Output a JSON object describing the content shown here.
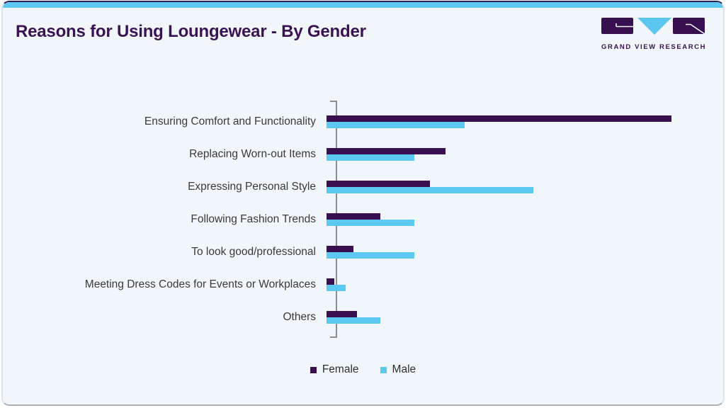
{
  "header": {
    "title": "Reasons for Using Loungewear - By Gender"
  },
  "logo": {
    "brand_text": "GRAND VIEW RESEARCH"
  },
  "colors": {
    "female_bar": "#38104f",
    "male_bar": "#5cc9f2",
    "top_strip": "#5ec9f0",
    "card_background": "#f0f6fa",
    "title_text": "#3b1254",
    "category_label_text": "#3a3a3a",
    "axis_line": "#8f8f8f"
  },
  "chart_data": {
    "type": "bar",
    "orientation": "horizontal",
    "title": "Reasons for Using Loungewear - By Gender",
    "categories": [
      "Ensuring Comfort and Functionality",
      "Replacing Worn-out Items",
      "Expressing Personal Style",
      "Following Fashion Trends",
      "To look good/professional",
      "Meeting Dress Codes for Events or Workplaces",
      "Others"
    ],
    "series": [
      {
        "name": "Female",
        "color": "#38104f",
        "values": [
          90,
          31,
          27,
          14,
          7,
          2,
          8
        ]
      },
      {
        "name": "Male",
        "color": "#5cc9f2",
        "values": [
          36,
          23,
          54,
          23,
          23,
          5,
          14
        ]
      },
      {
        "note": "x-axis has no visible tick labels; values estimated as percent of axis range"
      }
    ],
    "xlim": [
      0,
      100
    ],
    "grid": false,
    "x_tick_labels_visible": false,
    "legend_position": "bottom"
  },
  "legend": {
    "items": [
      {
        "label": "Female",
        "color": "#38104f"
      },
      {
        "label": "Male",
        "color": "#5cc9f2"
      }
    ]
  }
}
